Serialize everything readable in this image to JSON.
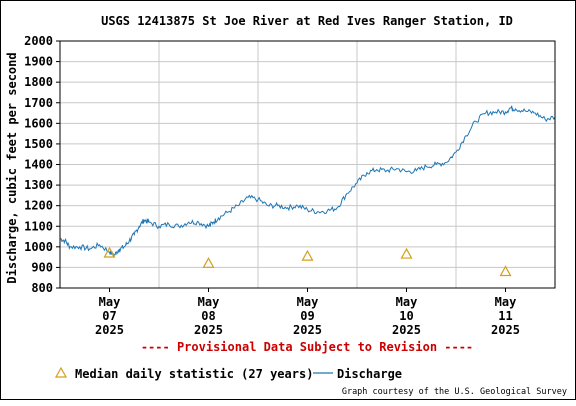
{
  "chart_data": {
    "type": "line",
    "title": "USGS 12413875 St Joe River at Red Ives Ranger Station, ID",
    "ylabel": "Discharge, cubic feet per second",
    "xlabel": "",
    "ylim": [
      800,
      2000
    ],
    "yticks": [
      800,
      900,
      1000,
      1100,
      1200,
      1300,
      1400,
      1500,
      1600,
      1700,
      1800,
      1900,
      2000
    ],
    "xticks": [
      {
        "month": "May",
        "day": "07",
        "year": "2025"
      },
      {
        "month": "May",
        "day": "08",
        "year": "2025"
      },
      {
        "month": "May",
        "day": "09",
        "year": "2025"
      },
      {
        "month": "May",
        "day": "10",
        "year": "2025"
      },
      {
        "month": "May",
        "day": "11",
        "year": "2025"
      }
    ],
    "xlim_days": [
      -0.5,
      4.5
    ],
    "grid": true,
    "series": [
      {
        "name": "Discharge",
        "color": "#1f77b4",
        "points": [
          [
            -0.5,
            1040
          ],
          [
            -0.45,
            1030
          ],
          [
            -0.4,
            1000
          ],
          [
            -0.3,
            1000
          ],
          [
            -0.2,
            990
          ],
          [
            -0.1,
            1010
          ],
          [
            0.0,
            975
          ],
          [
            0.05,
            960
          ],
          [
            0.1,
            990
          ],
          [
            0.15,
            1000
          ],
          [
            0.2,
            1030
          ],
          [
            0.25,
            1060
          ],
          [
            0.3,
            1100
          ],
          [
            0.35,
            1130
          ],
          [
            0.4,
            1120
          ],
          [
            0.5,
            1100
          ],
          [
            0.6,
            1110
          ],
          [
            0.7,
            1100
          ],
          [
            0.8,
            1120
          ],
          [
            0.9,
            1120
          ],
          [
            1.0,
            1100
          ],
          [
            1.05,
            1120
          ],
          [
            1.1,
            1140
          ],
          [
            1.2,
            1170
          ],
          [
            1.3,
            1200
          ],
          [
            1.4,
            1240
          ],
          [
            1.5,
            1230
          ],
          [
            1.6,
            1200
          ],
          [
            1.7,
            1200
          ],
          [
            1.8,
            1190
          ],
          [
            1.9,
            1200
          ],
          [
            2.0,
            1180
          ],
          [
            2.1,
            1170
          ],
          [
            2.2,
            1175
          ],
          [
            2.3,
            1190
          ],
          [
            2.4,
            1260
          ],
          [
            2.5,
            1310
          ],
          [
            2.6,
            1360
          ],
          [
            2.7,
            1375
          ],
          [
            2.8,
            1370
          ],
          [
            2.9,
            1380
          ],
          [
            3.0,
            1365
          ],
          [
            3.1,
            1370
          ],
          [
            3.2,
            1390
          ],
          [
            3.3,
            1400
          ],
          [
            3.4,
            1410
          ],
          [
            3.5,
            1460
          ],
          [
            3.6,
            1540
          ],
          [
            3.7,
            1610
          ],
          [
            3.8,
            1650
          ],
          [
            3.9,
            1655
          ],
          [
            4.0,
            1655
          ],
          [
            4.05,
            1675
          ],
          [
            4.1,
            1670
          ],
          [
            4.2,
            1660
          ],
          [
            4.3,
            1650
          ],
          [
            4.4,
            1620
          ],
          [
            4.5,
            1630
          ]
        ]
      },
      {
        "name": "Median daily statistic (27 years)",
        "color": "#d4a017",
        "marker": "triangle",
        "points": [
          [
            0,
            970
          ],
          [
            1,
            920
          ],
          [
            2,
            955
          ],
          [
            3,
            965
          ],
          [
            4,
            880
          ]
        ]
      }
    ]
  },
  "footer": {
    "provisional": "---- Provisional Data Subject to Revision ----",
    "legend_median": "Median daily statistic (27 years)",
    "legend_discharge": "Discharge",
    "credit": "Graph courtesy of the U.S. Geological Survey"
  }
}
